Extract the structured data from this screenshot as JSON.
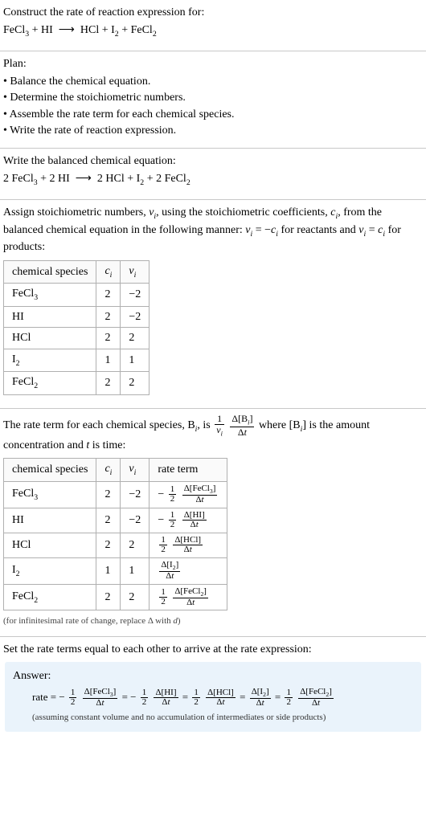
{
  "prompt": {
    "line1": "Construct the rate of reaction expression for:",
    "equation_html": "FeCl<span class='sub'>3</span> + HI &nbsp;⟶&nbsp; HCl + I<span class='sub'>2</span> + FeCl<span class='sub'>2</span>"
  },
  "plan": {
    "title": "Plan:",
    "items": [
      "• Balance the chemical equation.",
      "• Determine the stoichiometric numbers.",
      "• Assemble the rate term for each chemical species.",
      "• Write the rate of reaction expression."
    ]
  },
  "balanced": {
    "title": "Write the balanced chemical equation:",
    "equation_html": "2 FeCl<span class='sub'>3</span> + 2 HI &nbsp;⟶&nbsp; 2 HCl + I<span class='sub'>2</span> + 2 FeCl<span class='sub'>2</span>"
  },
  "stoich": {
    "intro_html": "Assign stoichiometric numbers, <span class='ital'>ν<span class='sub'>i</span></span>, using the stoichiometric coefficients, <span class='ital'>c<span class='sub'>i</span></span>, from the balanced chemical equation in the following manner: <span class='ital'>ν<span class='sub'>i</span></span> = −<span class='ital'>c<span class='sub'>i</span></span> for reactants and <span class='ital'>ν<span class='sub'>i</span></span> = <span class='ital'>c<span class='sub'>i</span></span> for products:",
    "table": {
      "headers_html": [
        "chemical species",
        "<span class='ital'>c<span class='sub'>i</span></span>",
        "<span class='ital'>ν<span class='sub'>i</span></span>"
      ],
      "rows_html": [
        [
          "FeCl<span class='sub'>3</span>",
          "2",
          "−2"
        ],
        [
          "HI",
          "2",
          "−2"
        ],
        [
          "HCl",
          "2",
          "2"
        ],
        [
          "I<span class='sub'>2</span>",
          "1",
          "1"
        ],
        [
          "FeCl<span class='sub'>2</span>",
          "2",
          "2"
        ]
      ]
    }
  },
  "rateterm": {
    "intro_pre": "The rate term for each chemical species, B",
    "intro_mid1": ", is ",
    "intro_mid2": " where [B",
    "intro_mid3": "] is the amount concentration and ",
    "intro_post": " is time:",
    "t_label": "t",
    "frac_main": {
      "num": "1",
      "den_html": "<span class='ital'>ν<span class='sub'>i</span></span>"
    },
    "frac_delta": {
      "num_html": "Δ[B<span class='sub ital'>i</span>]",
      "den_html": "Δ<span class='ital'>t</span>"
    },
    "table": {
      "headers_html": [
        "chemical species",
        "<span class='ital'>c<span class='sub'>i</span></span>",
        "<span class='ital'>ν<span class='sub'>i</span></span>",
        "rate term"
      ],
      "rows": [
        {
          "species_html": "FeCl<span class='sub'>3</span>",
          "c": "2",
          "nu": "−2",
          "sign": "−",
          "coef_num": "1",
          "coef_den": "2",
          "conc_html": "Δ[FeCl<span class='sub'>3</span>]"
        },
        {
          "species_html": "HI",
          "c": "2",
          "nu": "−2",
          "sign": "−",
          "coef_num": "1",
          "coef_den": "2",
          "conc_html": "Δ[HI]"
        },
        {
          "species_html": "HCl",
          "c": "2",
          "nu": "2",
          "sign": "",
          "coef_num": "1",
          "coef_den": "2",
          "conc_html": "Δ[HCl]"
        },
        {
          "species_html": "I<span class='sub'>2</span>",
          "c": "1",
          "nu": "1",
          "sign": "",
          "coef_num": "",
          "coef_den": "",
          "conc_html": "Δ[I<span class='sub'>2</span>]"
        },
        {
          "species_html": "FeCl<span class='sub'>2</span>",
          "c": "2",
          "nu": "2",
          "sign": "",
          "coef_num": "1",
          "coef_den": "2",
          "conc_html": "Δ[FeCl<span class='sub'>2</span>]"
        }
      ]
    },
    "footnote_html": "(for infinitesimal rate of change, replace Δ with <span class='ital'>d</span>)"
  },
  "final": {
    "title": "Set the rate terms equal to each other to arrive at the rate expression:",
    "answer_label": "Answer:",
    "rate_label": "rate = ",
    "terms": [
      {
        "sign": "−",
        "coef_num": "1",
        "coef_den": "2",
        "conc_html": "Δ[FeCl<span class='sub'>3</span>]"
      },
      {
        "sign": "−",
        "coef_num": "1",
        "coef_den": "2",
        "conc_html": "Δ[HI]"
      },
      {
        "sign": "",
        "coef_num": "1",
        "coef_den": "2",
        "conc_html": "Δ[HCl]"
      },
      {
        "sign": "",
        "coef_num": "",
        "coef_den": "",
        "conc_html": "Δ[I<span class='sub'>2</span>]"
      },
      {
        "sign": "",
        "coef_num": "1",
        "coef_den": "2",
        "conc_html": "Δ[FeCl<span class='sub'>2</span>]"
      }
    ],
    "note": "(assuming constant volume and no accumulation of intermediates or side products)"
  },
  "dt_html": "Δ<span class='ital'>t</span>"
}
